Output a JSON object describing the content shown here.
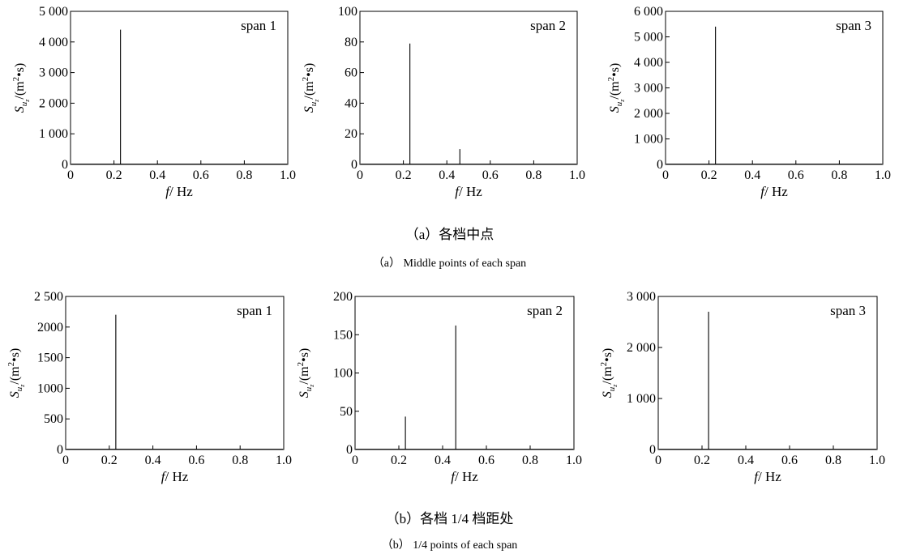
{
  "captions": {
    "a_cn": "（a）各档中点",
    "a_en": "（a） Middle points of each span",
    "b_cn": "（b）各档 1/4 档距处",
    "b_en": "（b） 1/4 points of each span"
  },
  "axis_text": {
    "xlabel_var": "f",
    "xlabel_unit": "/ Hz",
    "ylabel_var": "S",
    "ylabel_sub1": "u",
    "ylabel_sub2": "z",
    "ylabel_unit_open": "/(m",
    "ylabel_unit_sup": "2",
    "ylabel_unit_close": "•s)"
  },
  "chart_data": [
    {
      "type": "line",
      "row": "a",
      "label": "span 1",
      "xlim": [
        0,
        1.0
      ],
      "ylim": [
        0,
        5000
      ],
      "xticks": [
        0,
        0.2,
        0.4,
        0.6,
        0.8,
        1.0
      ],
      "xtick_labels": [
        "0",
        "0.2",
        "0.4",
        "0.6",
        "0.8",
        "1.0"
      ],
      "yticks": [
        0,
        1000,
        2000,
        3000,
        4000,
        5000
      ],
      "ytick_labels": [
        "0",
        "1 000",
        "2 000",
        "3 000",
        "4 000",
        "5 000"
      ],
      "peaks": [
        {
          "f": 0.23,
          "S": 4400
        }
      ]
    },
    {
      "type": "line",
      "row": "a",
      "label": "span 2",
      "xlim": [
        0,
        1.0
      ],
      "ylim": [
        0,
        100
      ],
      "xticks": [
        0,
        0.2,
        0.4,
        0.6,
        0.8,
        1.0
      ],
      "xtick_labels": [
        "0",
        "0.2",
        "0.4",
        "0.6",
        "0.8",
        "1.0"
      ],
      "yticks": [
        0,
        20,
        40,
        60,
        80,
        100
      ],
      "ytick_labels": [
        "0",
        "20",
        "40",
        "60",
        "80",
        "100"
      ],
      "peaks": [
        {
          "f": 0.23,
          "S": 79
        },
        {
          "f": 0.46,
          "S": 10
        }
      ]
    },
    {
      "type": "line",
      "row": "a",
      "label": "span 3",
      "xlim": [
        0,
        1.0
      ],
      "ylim": [
        0,
        6000
      ],
      "xticks": [
        0,
        0.2,
        0.4,
        0.6,
        0.8,
        1.0
      ],
      "xtick_labels": [
        "0",
        "0.2",
        "0.4",
        "0.6",
        "0.8",
        "1.0"
      ],
      "yticks": [
        0,
        1000,
        2000,
        3000,
        4000,
        5000,
        6000
      ],
      "ytick_labels": [
        "0",
        "1 000",
        "2 000",
        "3 000",
        "4 000",
        "5 000",
        "6 000"
      ],
      "peaks": [
        {
          "f": 0.23,
          "S": 5400
        }
      ]
    },
    {
      "type": "line",
      "row": "b",
      "label": "span 1",
      "xlim": [
        0,
        1.0
      ],
      "ylim": [
        0,
        2500
      ],
      "xticks": [
        0,
        0.2,
        0.4,
        0.6,
        0.8,
        1.0
      ],
      "xtick_labels": [
        "0",
        "0.2",
        "0.4",
        "0.6",
        "0.8",
        "1.0"
      ],
      "yticks": [
        0,
        500,
        1000,
        1500,
        2000,
        2500
      ],
      "ytick_labels": [
        "0",
        "500",
        "1000",
        "1500",
        "2000",
        "2 500"
      ],
      "peaks": [
        {
          "f": 0.23,
          "S": 2200
        }
      ]
    },
    {
      "type": "line",
      "row": "b",
      "label": "span 2",
      "xlim": [
        0,
        1.0
      ],
      "ylim": [
        0,
        200
      ],
      "xticks": [
        0,
        0.2,
        0.4,
        0.6,
        0.8,
        1.0
      ],
      "xtick_labels": [
        "0",
        "0.2",
        "0.4",
        "0.6",
        "0.8",
        "1.0"
      ],
      "yticks": [
        0,
        50,
        100,
        150,
        200
      ],
      "ytick_labels": [
        "0",
        "50",
        "100",
        "150",
        "200"
      ],
      "peaks": [
        {
          "f": 0.23,
          "S": 43
        },
        {
          "f": 0.46,
          "S": 162
        }
      ]
    },
    {
      "type": "line",
      "row": "b",
      "label": "span 3",
      "xlim": [
        0,
        1.0
      ],
      "ylim": [
        0,
        3000
      ],
      "xticks": [
        0,
        0.2,
        0.4,
        0.6,
        0.8,
        1.0
      ],
      "xtick_labels": [
        "0",
        "0.2",
        "0.4",
        "0.6",
        "0.8",
        "1.0"
      ],
      "yticks": [
        0,
        1000,
        2000,
        3000
      ],
      "ytick_labels": [
        "0",
        "1 000",
        "2 000",
        "3 000"
      ],
      "peaks": [
        {
          "f": 0.23,
          "S": 2700
        }
      ]
    }
  ]
}
